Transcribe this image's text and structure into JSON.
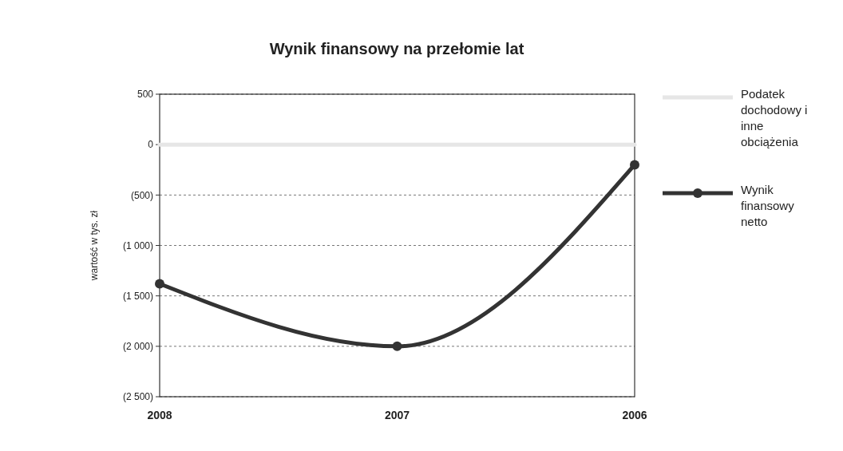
{
  "chart_data": {
    "type": "line",
    "title": "Wynik finansowy na przełomie lat",
    "ylabel": "wartość w tys. zł",
    "categories": [
      "2008",
      "2007",
      "2006"
    ],
    "series": [
      {
        "name": "Podatek dochodowy i inne obciążenia",
        "color": "#e6e6e6",
        "values": [
          0,
          0,
          0
        ],
        "marker": "none"
      },
      {
        "name": "Wynik finansowy netto",
        "color": "#333333",
        "values": [
          -1380,
          -2000,
          -200
        ],
        "marker": "circle"
      }
    ],
    "ylim": [
      -2500,
      500
    ],
    "yticks": [
      {
        "value": 500,
        "label": "500"
      },
      {
        "value": 0,
        "label": "0"
      },
      {
        "value": -500,
        "label": "(500)"
      },
      {
        "value": -1000,
        "label": "(1 000)"
      },
      {
        "value": -1500,
        "label": "(1 500)"
      },
      {
        "value": -2000,
        "label": "(2 000)"
      },
      {
        "value": -2500,
        "label": "(2 500)"
      }
    ],
    "grid": "y",
    "legend": "right",
    "line_style": "solid"
  }
}
